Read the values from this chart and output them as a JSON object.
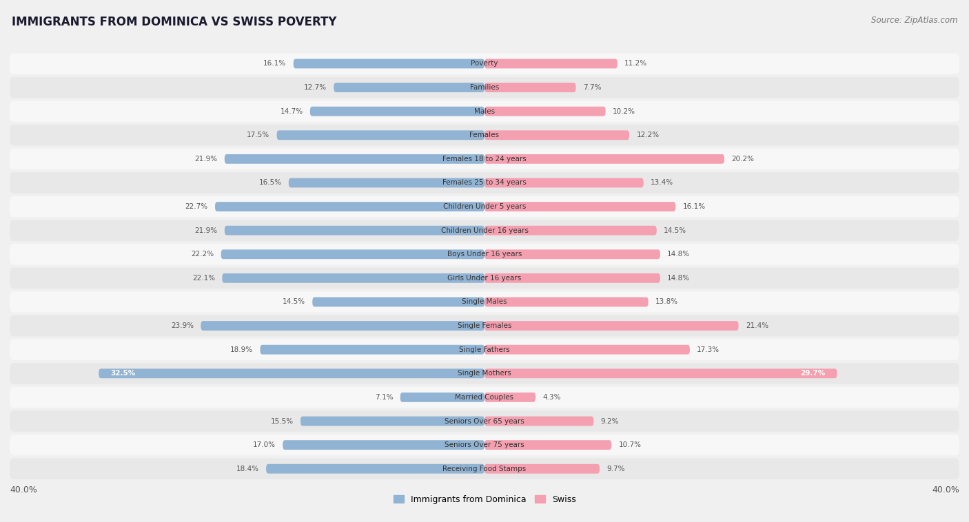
{
  "title": "IMMIGRANTS FROM DOMINICA VS SWISS POVERTY",
  "source": "Source: ZipAtlas.com",
  "categories": [
    "Poverty",
    "Families",
    "Males",
    "Females",
    "Females 18 to 24 years",
    "Females 25 to 34 years",
    "Children Under 5 years",
    "Children Under 16 years",
    "Boys Under 16 years",
    "Girls Under 16 years",
    "Single Males",
    "Single Females",
    "Single Fathers",
    "Single Mothers",
    "Married Couples",
    "Seniors Over 65 years",
    "Seniors Over 75 years",
    "Receiving Food Stamps"
  ],
  "left_values": [
    16.1,
    12.7,
    14.7,
    17.5,
    21.9,
    16.5,
    22.7,
    21.9,
    22.2,
    22.1,
    14.5,
    23.9,
    18.9,
    32.5,
    7.1,
    15.5,
    17.0,
    18.4
  ],
  "right_values": [
    11.2,
    7.7,
    10.2,
    12.2,
    20.2,
    13.4,
    16.1,
    14.5,
    14.8,
    14.8,
    13.8,
    21.4,
    17.3,
    29.7,
    4.3,
    9.2,
    10.7,
    9.7
  ],
  "left_color": "#92b4d4",
  "right_color": "#f4a0b0",
  "left_label": "Immigrants from Dominica",
  "right_label": "Swiss",
  "axis_max": 40.0,
  "background_color": "#f0f0f0",
  "row_bg_odd": "#f7f7f7",
  "row_bg_even": "#e8e8e8",
  "title_fontsize": 12,
  "source_fontsize": 8.5,
  "label_fontsize": 7.5,
  "value_fontsize": 7.5,
  "legend_fontsize": 9
}
